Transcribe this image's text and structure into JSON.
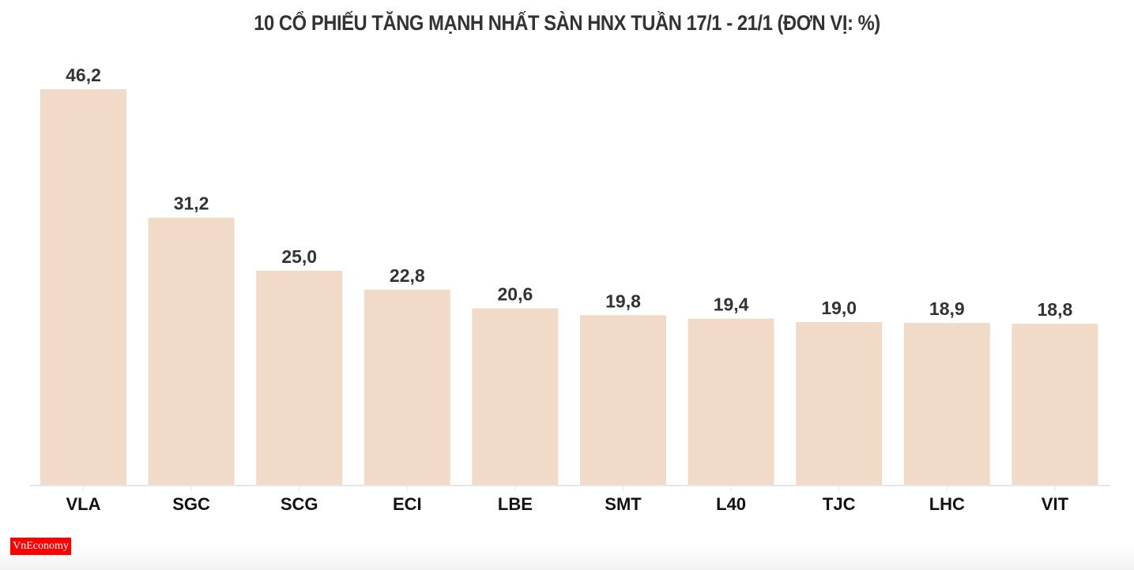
{
  "chart_data": {
    "type": "bar",
    "title": "10 CỔ PHIẾU TĂNG MẠNH NHẤT SÀN HNX TUẦN 17/1 - 21/1 (ĐƠN VỊ: %)",
    "categories": [
      "VLA",
      "SGC",
      "SCG",
      "ECI",
      "LBE",
      "SMT",
      "L40",
      "TJC",
      "LHC",
      "VIT"
    ],
    "values": [
      46.2,
      31.2,
      25.0,
      22.8,
      20.6,
      19.8,
      19.4,
      19.0,
      18.9,
      18.8
    ],
    "value_labels": [
      "46,2",
      "31,2",
      "25,0",
      "22,8",
      "20,6",
      "19,8",
      "19,4",
      "19,0",
      "18,9",
      "18,8"
    ],
    "xlabel": "",
    "ylabel": "",
    "ylim": [
      0,
      46.2
    ],
    "grid": false,
    "bar_color": "#f2dac8",
    "axis_color": "#e6e6e6"
  },
  "logo": {
    "text": "VnEconomy",
    "color": "#ff0000"
  }
}
